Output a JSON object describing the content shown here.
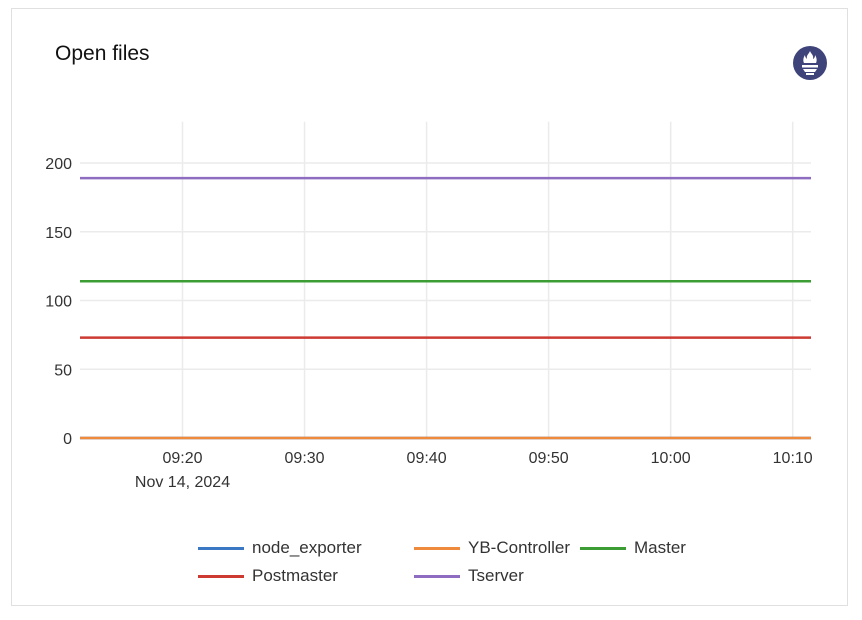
{
  "panel": {
    "title": "Open files",
    "logo_icon": "prometheus-icon",
    "logo_color": "#3e4479"
  },
  "chart_data": {
    "type": "line",
    "title": "Open files",
    "x_date": "Nov 14, 2024",
    "xlim": [
      "09:11:36",
      "10:11:30"
    ],
    "x_ticks": [
      "09:20",
      "09:30",
      "09:40",
      "09:50",
      "10:00",
      "10:10"
    ],
    "x_tick_sublabel": "Nov 14, 2024",
    "ylim": [
      0,
      230
    ],
    "y_ticks": [
      0,
      50,
      100,
      150,
      200
    ],
    "grid": true,
    "legend_placement": "bottom",
    "series": [
      {
        "name": "node_exporter",
        "color": "#3a78c3",
        "x": [
          "09:11:36",
          "10:11:30"
        ],
        "values": [
          0,
          0
        ]
      },
      {
        "name": "YB-Controller",
        "color": "#ef8a3c",
        "x": [
          "09:11:36",
          "10:11:30"
        ],
        "values": [
          0,
          0
        ]
      },
      {
        "name": "Master",
        "color": "#3c9d35",
        "x": [
          "09:11:36",
          "10:11:30"
        ],
        "values": [
          114,
          114
        ]
      },
      {
        "name": "Postmaster",
        "color": "#cc3a32",
        "x": [
          "09:11:36",
          "10:11:30"
        ],
        "values": [
          73,
          73
        ]
      },
      {
        "name": "Tserver",
        "color": "#8e6cc0",
        "x": [
          "09:11:36",
          "10:11:30"
        ],
        "values": [
          189,
          189
        ]
      }
    ]
  }
}
